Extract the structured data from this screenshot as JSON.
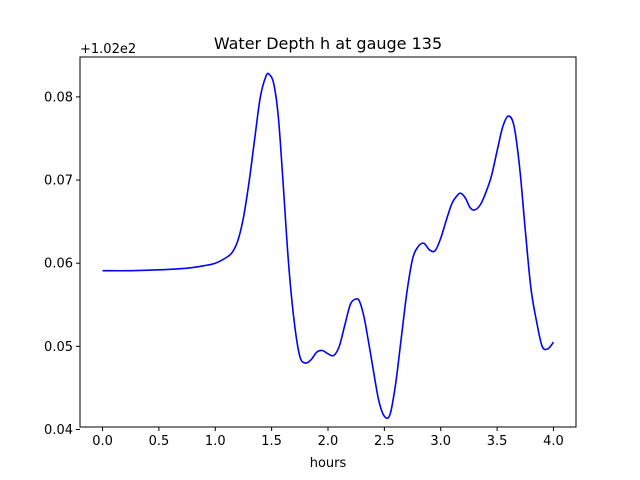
{
  "chart_data": {
    "type": "line",
    "title": "Water Depth h at gauge 135",
    "xlabel": "hours",
    "ylabel": "",
    "y_offset_label": "+1.02e2",
    "xlim": [
      -0.2,
      4.2
    ],
    "ylim": [
      0.0403,
      0.0848
    ],
    "xticks": [
      0.0,
      0.5,
      1.0,
      1.5,
      2.0,
      2.5,
      3.0,
      3.5,
      4.0
    ],
    "xtick_labels": [
      "0.0",
      "0.5",
      "1.0",
      "1.5",
      "2.0",
      "2.5",
      "3.0",
      "3.5",
      "4.0"
    ],
    "yticks": [
      0.04,
      0.05,
      0.06,
      0.07,
      0.08
    ],
    "ytick_labels": [
      "0.04",
      "0.05",
      "0.06",
      "0.07",
      "0.08"
    ],
    "grid": false,
    "line_color": "#0000ff",
    "series": [
      {
        "x": [
          0.0,
          0.25,
          0.5,
          0.75,
          0.9,
          1.0,
          1.1,
          1.15,
          1.2,
          1.25,
          1.3,
          1.35,
          1.4,
          1.45,
          1.48,
          1.52,
          1.56,
          1.6,
          1.65,
          1.7,
          1.75,
          1.8,
          1.85,
          1.9,
          1.95,
          2.0,
          2.05,
          2.1,
          2.15,
          2.2,
          2.25,
          2.28,
          2.32,
          2.36,
          2.4,
          2.45,
          2.5,
          2.55,
          2.6,
          2.65,
          2.7,
          2.75,
          2.8,
          2.85,
          2.9,
          2.95,
          3.0,
          3.05,
          3.1,
          3.15,
          3.18,
          3.22,
          3.26,
          3.3,
          3.35,
          3.4,
          3.45,
          3.5,
          3.55,
          3.6,
          3.65,
          3.7,
          3.75,
          3.8,
          3.85,
          3.9,
          3.95,
          4.0
        ],
        "y": [
          0.0591,
          0.0591,
          0.0592,
          0.0594,
          0.0597,
          0.06,
          0.0607,
          0.0613,
          0.0627,
          0.0655,
          0.0698,
          0.075,
          0.08,
          0.0825,
          0.0827,
          0.0815,
          0.0775,
          0.07,
          0.06,
          0.053,
          0.0488,
          0.048,
          0.0484,
          0.0493,
          0.0495,
          0.0491,
          0.0489,
          0.05,
          0.0526,
          0.0551,
          0.0557,
          0.0554,
          0.0535,
          0.0505,
          0.0473,
          0.0435,
          0.0416,
          0.0418,
          0.0455,
          0.051,
          0.0565,
          0.0605,
          0.062,
          0.0624,
          0.0616,
          0.0615,
          0.063,
          0.0652,
          0.0672,
          0.0682,
          0.0684,
          0.0678,
          0.0667,
          0.0664,
          0.067,
          0.0685,
          0.0705,
          0.0735,
          0.0764,
          0.0777,
          0.0765,
          0.0715,
          0.064,
          0.057,
          0.053,
          0.05,
          0.0497,
          0.0505
        ]
      }
    ]
  }
}
